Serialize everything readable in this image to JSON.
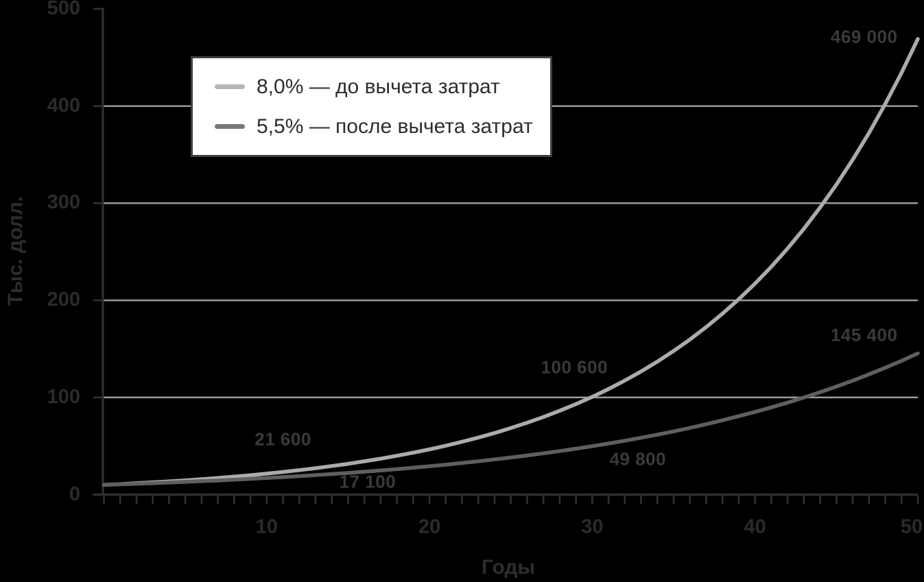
{
  "colors": {
    "background": "#000000",
    "axis": "#303032",
    "grid": "#9a9a9c",
    "tick_text": "#2b2b2d",
    "annotation_text": "#3a3a3c",
    "legend_background": "#ffffff",
    "legend_border": "#404043",
    "legend_text": "#2d2d2f"
  },
  "chart_data": {
    "type": "line",
    "title": "",
    "xlabel": "Годы",
    "ylabel": "Тыс. долл.",
    "xlim": [
      0,
      50
    ],
    "ylim": [
      0,
      500
    ],
    "xticks": [
      10,
      20,
      30,
      40,
      50
    ],
    "yticks": [
      0,
      100,
      200,
      300,
      400,
      500
    ],
    "grid_lines_y": [
      100,
      200,
      300,
      400
    ],
    "x_minor_tick_step": 1,
    "grid": "horizontal-only",
    "legend": {
      "position": "top-left",
      "entries": [
        {
          "label": "8,0% — до вычета затрат",
          "color": "#b4b5b7"
        },
        {
          "label": "5,5% — после вычета затрат",
          "color": "#78797c"
        }
      ]
    },
    "series": [
      {
        "name": "8,0% — до вычета затрат",
        "rate_percent": 8.0,
        "color": "#a9abad",
        "width": 5.5,
        "x_start": 0,
        "x_step": 1,
        "y": [
          10,
          10.8,
          11.7,
          12.6,
          13.6,
          14.7,
          15.9,
          17.1,
          18.5,
          20,
          21.6,
          23.3,
          25.2,
          27.2,
          29.4,
          31.7,
          34.3,
          37,
          40,
          43.2,
          46.6,
          50.3,
          54.4,
          58.7,
          63.4,
          68.5,
          74,
          79.9,
          86.3,
          93.2,
          100.6,
          108.7,
          117.4,
          126.8,
          136.9,
          147.9,
          159.7,
          172.5,
          186.3,
          201.2,
          217.2,
          234.6,
          253.4,
          273.7,
          295.6,
          319.2,
          344.8,
          372.3,
          402.1,
          434.3,
          469
        ]
      },
      {
        "name": "5,5% — после вычета затрат",
        "rate_percent": 5.5,
        "color": "#5e5f62",
        "width": 5.5,
        "x_start": 0,
        "x_step": 1,
        "y": [
          10,
          10.6,
          11.1,
          11.7,
          12.4,
          13.1,
          13.8,
          14.5,
          15.3,
          16.2,
          17.1,
          18,
          19,
          20.1,
          21.2,
          22.3,
          23.6,
          24.9,
          26.2,
          27.7,
          29.2,
          30.8,
          32.5,
          34.3,
          36.2,
          38.2,
          40.3,
          42.5,
          44.8,
          47.3,
          49.8,
          52.6,
          55.5,
          58.5,
          61.7,
          65.1,
          68.7,
          72.5,
          76.5,
          80.7,
          85.1,
          89.8,
          94.7,
          99.9,
          105.4,
          111.2,
          117.3,
          123.8,
          130.6,
          137.7,
          145.4
        ]
      }
    ],
    "annotations": [
      {
        "text": "21 600",
        "series": 0,
        "year": 10,
        "x": 11.0,
        "y": 57
      },
      {
        "text": "17 100",
        "series": 1,
        "year": 10,
        "x": 16.2,
        "y": 13
      },
      {
        "text": "100 600",
        "series": 0,
        "year": 30,
        "x": 28.9,
        "y": 131
      },
      {
        "text": "49 800",
        "series": 1,
        "year": 30,
        "x": 32.8,
        "y": 36
      },
      {
        "text": "469 000",
        "series": 0,
        "year": 50,
        "x": 46.7,
        "y": 471
      },
      {
        "text": "145 400",
        "series": 1,
        "year": 50,
        "x": 46.7,
        "y": 164
      }
    ]
  }
}
